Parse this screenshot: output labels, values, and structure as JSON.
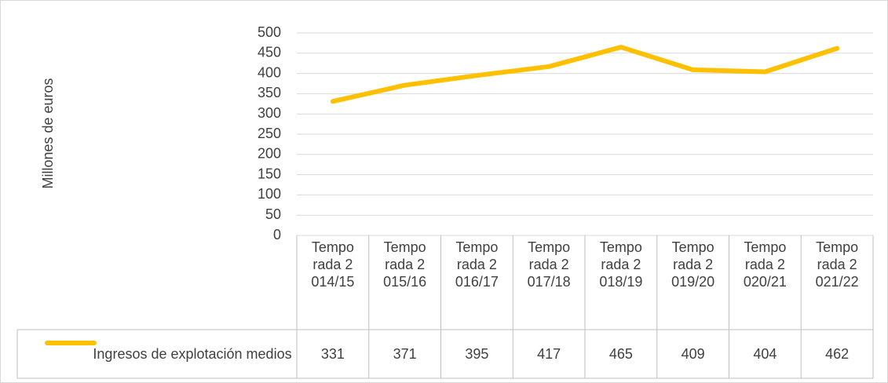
{
  "chart_data": {
    "type": "line",
    "y_label": "Millones de euros",
    "categories": [
      "Temporada 2014/15",
      "Temporada 2015/16",
      "Temporada 2016/17",
      "Temporada 2017/18",
      "Temporada 2018/19",
      "Temporada 2019/20",
      "Temporada 2020/21",
      "Temporada 2021/22"
    ],
    "series": [
      {
        "name": "Ingresos de explotación medios",
        "color": "#ffc000",
        "values": [
          331,
          371,
          395,
          417,
          465,
          409,
          404,
          462
        ]
      }
    ],
    "ylim": [
      0,
      500
    ],
    "yticks": [
      0,
      50,
      100,
      150,
      200,
      250,
      300,
      350,
      400,
      450,
      500
    ],
    "grid": true,
    "data_table": true
  }
}
